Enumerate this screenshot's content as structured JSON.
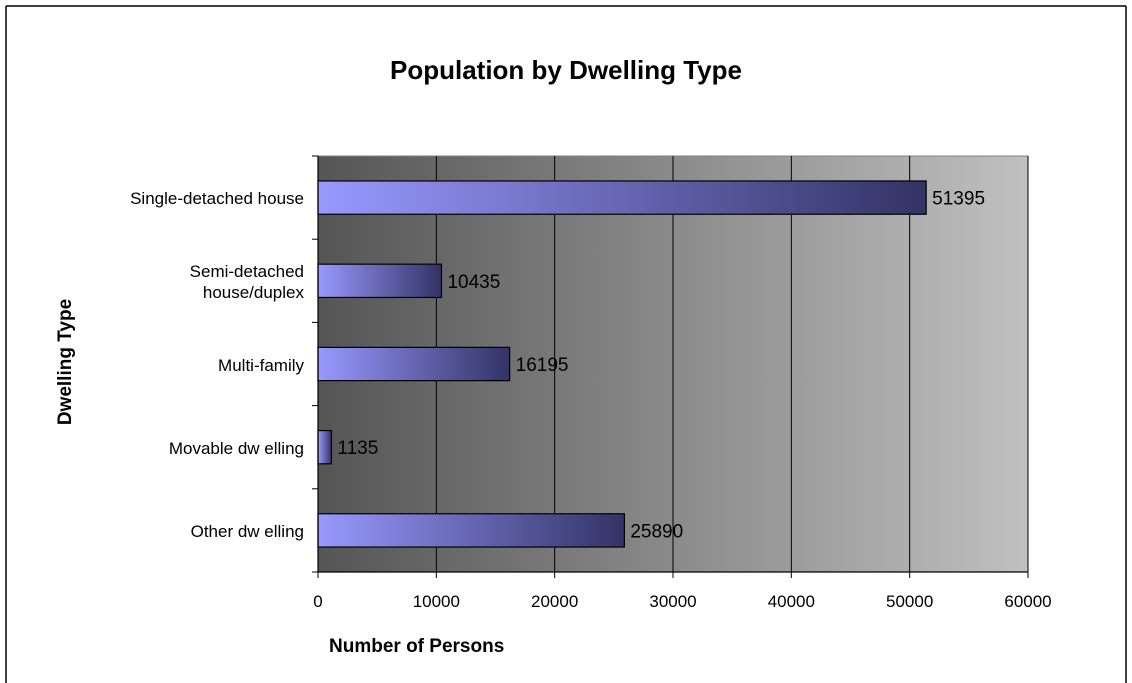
{
  "chart_data": {
    "type": "bar",
    "orientation": "horizontal",
    "title": "Population by Dwelling Type",
    "xlabel": "Number of Persons",
    "ylabel": "Dwelling Type",
    "categories": [
      [
        "Single-detached house"
      ],
      [
        "Semi-detached",
        "house/duplex"
      ],
      [
        "Multi-family"
      ],
      [
        "Movable dw elling"
      ],
      [
        "Other dw elling"
      ]
    ],
    "values": [
      51395,
      10435,
      16195,
      1135,
      25890
    ],
    "value_labels": [
      "51395",
      "10435",
      "16195",
      "1135",
      "25890"
    ],
    "xlim": [
      0,
      60000
    ],
    "x_ticks": [
      "0",
      "10000",
      "20000",
      "30000",
      "40000",
      "50000",
      "60000"
    ],
    "grid": true,
    "legend": "none",
    "colors": {
      "bar_start": "#9999ff",
      "bar_end": "#333366",
      "plot_bg_dark": "#555555",
      "plot_bg_light": "#c0c0c0"
    }
  }
}
